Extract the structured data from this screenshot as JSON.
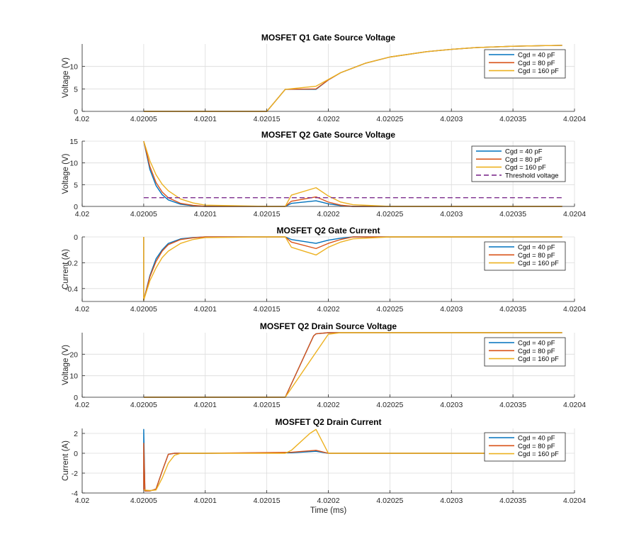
{
  "figure": {
    "background": "#ffffff"
  },
  "colors": {
    "blue": "#0072BD",
    "orange": "#D95319",
    "yellow": "#EDB120",
    "purple": "#7E2F8E",
    "grid": "#dcdcdc",
    "axis": "#262626"
  },
  "x_ticks": [
    "4.02",
    "4.02005",
    "4.0201",
    "4.02015",
    "4.0202",
    "4.02025",
    "4.0203",
    "4.02035",
    "4.0204"
  ],
  "xlabel": "Time (ms)",
  "chart_data": [
    {
      "type": "line",
      "title": "MOSFET Q1 Gate Source Voltage",
      "ylabel": "Voltage (V)",
      "xlim": [
        4.02,
        4.0204
      ],
      "ylim": [
        0,
        15
      ],
      "yticks": [
        "0",
        "5",
        "10"
      ],
      "grid": true,
      "legend_position": "top-right",
      "series": [
        {
          "name": "Cgd = 40 pF",
          "color": "#0072BD",
          "x": [
            4.02005,
            4.02015,
            4.020165,
            4.02019,
            4.0202,
            4.02021,
            4.02023,
            4.02025,
            4.02028,
            4.0203,
            4.02032,
            4.02035,
            4.02039
          ],
          "y": [
            0,
            0,
            4.9,
            4.9,
            7.0,
            8.6,
            10.7,
            12.1,
            13.3,
            13.8,
            14.2,
            14.5,
            14.7
          ]
        },
        {
          "name": "Cgd = 80 pF",
          "color": "#D95319",
          "x": [
            4.02005,
            4.02015,
            4.020165,
            4.02019,
            4.0202,
            4.02021,
            4.02023,
            4.02025,
            4.02028,
            4.0203,
            4.02032,
            4.02035,
            4.02039
          ],
          "y": [
            0,
            0,
            4.9,
            5.0,
            7.0,
            8.6,
            10.7,
            12.1,
            13.3,
            13.8,
            14.2,
            14.5,
            14.7
          ]
        },
        {
          "name": "Cgd = 160 pF",
          "color": "#EDB120",
          "x": [
            4.02005,
            4.02015,
            4.020165,
            4.02019,
            4.0202,
            4.02021,
            4.02023,
            4.02025,
            4.02028,
            4.0203,
            4.02032,
            4.02035,
            4.02039
          ],
          "y": [
            0,
            0,
            4.9,
            5.6,
            7.1,
            8.6,
            10.7,
            12.1,
            13.3,
            13.8,
            14.2,
            14.5,
            14.7
          ]
        }
      ]
    },
    {
      "type": "line",
      "title": "MOSFET Q2 Gate Source Voltage",
      "ylabel": "Voltage (V)",
      "xlim": [
        4.02,
        4.0204
      ],
      "ylim": [
        0,
        15
      ],
      "yticks": [
        "0",
        "5",
        "10",
        "15"
      ],
      "grid": true,
      "legend_position": "top-right",
      "series": [
        {
          "name": "Cgd = 40 pF",
          "color": "#0072BD",
          "x": [
            4.02005,
            4.020055,
            4.02006,
            4.020065,
            4.02007,
            4.02008,
            4.02009,
            4.0201,
            4.02015,
            4.020165,
            4.02017,
            4.02019,
            4.0202,
            4.02021,
            4.02022,
            4.02039
          ],
          "y": [
            15,
            8.5,
            4.8,
            2.7,
            1.5,
            0.5,
            0.15,
            0,
            0,
            0,
            0.7,
            1.3,
            0.6,
            0.2,
            0,
            0
          ]
        },
        {
          "name": "Cgd = 80 pF",
          "color": "#D95319",
          "x": [
            4.02005,
            4.020055,
            4.02006,
            4.020065,
            4.02007,
            4.02008,
            4.02009,
            4.0201,
            4.02015,
            4.020165,
            4.02017,
            4.02019,
            4.0202,
            4.02021,
            4.02022,
            4.02039
          ],
          "y": [
            15,
            9.2,
            5.5,
            3.3,
            2.0,
            0.7,
            0.25,
            0,
            0,
            0,
            1.2,
            2.2,
            1.0,
            0.3,
            0,
            0
          ]
        },
        {
          "name": "Cgd = 160 pF",
          "color": "#EDB120",
          "x": [
            4.02005,
            4.020055,
            4.02006,
            4.020065,
            4.02007,
            4.02008,
            4.02009,
            4.0201,
            4.02015,
            4.020165,
            4.02017,
            4.02019,
            4.0202,
            4.02021,
            4.02022,
            4.02025,
            4.02039
          ],
          "y": [
            15,
            10.5,
            7.3,
            5.1,
            3.6,
            1.7,
            0.8,
            0.3,
            0,
            0,
            2.6,
            4.3,
            2.4,
            1.0,
            0.4,
            0,
            0
          ]
        },
        {
          "name": "Threshold voltage",
          "color": "#7E2F8E",
          "dashed": true,
          "x": [
            4.02005,
            4.02039
          ],
          "y": [
            2,
            2
          ]
        }
      ]
    },
    {
      "type": "line",
      "title": "MOSFET Q2 Gate Current",
      "ylabel": "Current (A)",
      "xlim": [
        4.02,
        4.0204
      ],
      "ylim": [
        -0.5,
        0
      ],
      "yticks": [
        "0",
        "-0.2",
        "-0.4"
      ],
      "grid": true,
      "legend_position": "top-right",
      "series": [
        {
          "name": "Cgd = 40 pF",
          "color": "#0072BD",
          "x": [
            4.02005,
            4.02005,
            4.020055,
            4.02006,
            4.020065,
            4.02007,
            4.02008,
            4.02009,
            4.0201,
            4.02015,
            4.020165,
            4.02017,
            4.02019,
            4.0202,
            4.02021,
            4.02022,
            4.02039
          ],
          "y": [
            0,
            -0.49,
            -0.3,
            -0.17,
            -0.1,
            -0.05,
            -0.015,
            -0.005,
            0,
            0,
            0,
            -0.02,
            -0.05,
            -0.025,
            -0.01,
            0,
            0
          ]
        },
        {
          "name": "Cgd = 80 pF",
          "color": "#D95319",
          "x": [
            4.02005,
            4.02005,
            4.020055,
            4.02006,
            4.020065,
            4.02007,
            4.02008,
            4.02009,
            4.0201,
            4.02015,
            4.020165,
            4.02017,
            4.02019,
            4.0202,
            4.02021,
            4.02022,
            4.02039
          ],
          "y": [
            0,
            -0.49,
            -0.31,
            -0.19,
            -0.11,
            -0.06,
            -0.02,
            -0.007,
            0,
            0,
            0,
            -0.04,
            -0.09,
            -0.05,
            -0.02,
            0,
            0
          ]
        },
        {
          "name": "Cgd = 160 pF",
          "color": "#EDB120",
          "x": [
            4.02005,
            4.02005,
            4.020055,
            4.02006,
            4.020065,
            4.02007,
            4.02008,
            4.02009,
            4.0201,
            4.02015,
            4.020165,
            4.02017,
            4.02019,
            4.0202,
            4.02021,
            4.02022,
            4.02025,
            4.02039
          ],
          "y": [
            0,
            -0.49,
            -0.34,
            -0.24,
            -0.16,
            -0.11,
            -0.05,
            -0.02,
            -0.005,
            0,
            0,
            -0.08,
            -0.14,
            -0.08,
            -0.04,
            -0.015,
            0,
            0
          ]
        }
      ]
    },
    {
      "type": "line",
      "title": "MOSFET Q2 Drain Source Voltage",
      "ylabel": "Voltage (V)",
      "xlim": [
        4.02,
        4.0204
      ],
      "ylim": [
        0,
        30
      ],
      "yticks": [
        "0",
        "10",
        "20"
      ],
      "grid": true,
      "legend_position": "top-right",
      "series": [
        {
          "name": "Cgd = 40 pF",
          "color": "#0072BD",
          "x": [
            4.02005,
            4.020165,
            4.020188,
            4.02019,
            4.0202,
            4.02039
          ],
          "y": [
            0,
            0,
            28.5,
            29.5,
            30,
            30
          ]
        },
        {
          "name": "Cgd = 80 pF",
          "color": "#D95319",
          "x": [
            4.02005,
            4.020165,
            4.020188,
            4.02019,
            4.0202,
            4.02039
          ],
          "y": [
            0,
            0,
            28.5,
            29.5,
            30,
            30
          ]
        },
        {
          "name": "Cgd = 160 pF",
          "color": "#EDB120",
          "x": [
            4.02005,
            4.020165,
            4.0202,
            4.02021,
            4.02039
          ],
          "y": [
            0,
            0,
            29.3,
            30,
            30
          ]
        }
      ]
    },
    {
      "type": "line",
      "title": "MOSFET Q2 Drain Current",
      "ylabel": "Current (A)",
      "xlim": [
        4.02,
        4.0204
      ],
      "ylim": [
        -4,
        2.5
      ],
      "yticks": [
        "2",
        "0",
        "-2",
        "-4"
      ],
      "grid": true,
      "legend_position": "top-right",
      "series": [
        {
          "name": "Cgd = 40 pF",
          "color": "#0072BD",
          "x": [
            4.02005,
            4.02005,
            4.020051,
            4.020055,
            4.02006,
            4.020065,
            4.02007,
            4.020075,
            4.0201,
            4.02017,
            4.02019,
            4.0202,
            4.02039
          ],
          "y": [
            -3.7,
            2.4,
            -3.8,
            -3.8,
            -3.6,
            -1.8,
            -0.1,
            0,
            0,
            0.05,
            0.2,
            0,
            0
          ]
        },
        {
          "name": "Cgd = 80 pF",
          "color": "#D95319",
          "x": [
            4.02005,
            4.02005,
            4.020051,
            4.020055,
            4.02006,
            4.020065,
            4.02007,
            4.020075,
            4.0201,
            4.02017,
            4.02019,
            4.0202,
            4.02039
          ],
          "y": [
            -3.7,
            1.0,
            -3.8,
            -3.8,
            -3.6,
            -1.8,
            -0.1,
            0,
            0,
            0.1,
            0.3,
            0,
            0
          ]
        },
        {
          "name": "Cgd = 160 pF",
          "color": "#EDB120",
          "x": [
            4.02005,
            4.020055,
            4.02006,
            4.020065,
            4.02007,
            4.020075,
            4.02008,
            4.0201,
            4.02015,
            4.020165,
            4.02017,
            4.020185,
            4.02019,
            4.020195,
            4.0202,
            4.02039
          ],
          "y": [
            -3.7,
            -3.75,
            -3.7,
            -2.5,
            -1.0,
            -0.2,
            0,
            0,
            0,
            0,
            0.3,
            2.0,
            2.4,
            1.2,
            0,
            0
          ]
        }
      ]
    }
  ]
}
